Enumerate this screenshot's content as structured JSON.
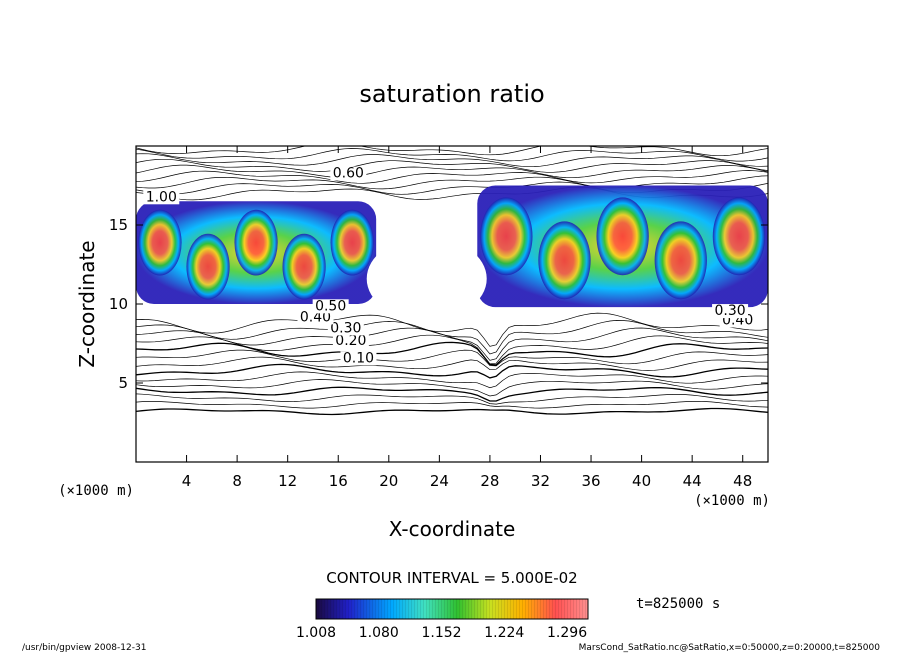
{
  "chart_data": {
    "type": "heatmap",
    "title": "saturation ratio",
    "xlabel": "X-coordinate",
    "ylabel": "Z-coordinate",
    "x_unit": "(×1000 m)",
    "y_unit": "(×1000 m)",
    "xlim": [
      0,
      50000
    ],
    "ylim": [
      0,
      20000
    ],
    "x_ticks": [
      "4",
      "8",
      "12",
      "16",
      "20",
      "24",
      "28",
      "32",
      "36",
      "40",
      "44",
      "48"
    ],
    "y_ticks": [
      "5",
      "10",
      "15"
    ],
    "contour_interval_label": "CONTOUR INTERVAL = 5.000E-02",
    "colorbar_ticks": [
      "1.008",
      "1.080",
      "1.152",
      "1.224",
      "1.296"
    ],
    "colorbar_range": [
      1.008,
      1.32
    ],
    "time_label": "t=825000 s",
    "contour_labels": [
      {
        "text": "0.10",
        "x": 17600,
        "z": 6300
      },
      {
        "text": "0.20",
        "x": 17000,
        "z": 7400
      },
      {
        "text": "0.30",
        "x": 16600,
        "z": 8200
      },
      {
        "text": "0.40",
        "x": 14200,
        "z": 8900
      },
      {
        "text": "0.50",
        "x": 15400,
        "z": 9600
      },
      {
        "text": "0.60",
        "x": 16800,
        "z": 18000
      },
      {
        "text": "1.00",
        "x": 2000,
        "z": 16500
      },
      {
        "text": "0.40",
        "x": 47600,
        "z": 8700
      },
      {
        "text": "0.30",
        "x": 47000,
        "z": 9300
      }
    ],
    "saturated_regions": [
      {
        "x": [
          0,
          19000
        ],
        "z": [
          10000,
          16500
        ],
        "peak": 1.3
      },
      {
        "x": [
          27000,
          50000
        ],
        "z": [
          9800,
          17500
        ],
        "peak": 1.32
      }
    ],
    "colors": {
      "low": "#000080",
      "mid_low": "#00c8ff",
      "mid": "#00d000",
      "mid_high": "#ffd000",
      "high": "#ff3030"
    }
  },
  "footer": {
    "left": "/usr/bin/gpview   2008-12-31",
    "right": "MarsCond_SatRatio.nc@SatRatio,x=0:50000,z=0:20000,t=825000"
  }
}
